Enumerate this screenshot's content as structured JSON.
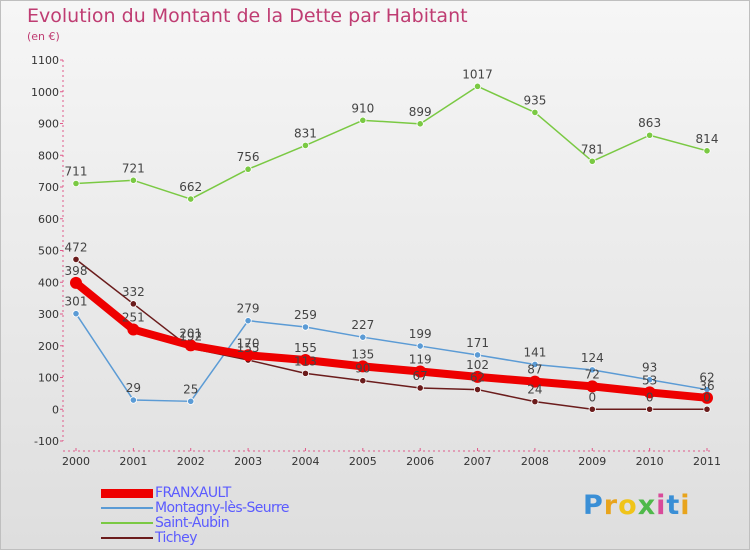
{
  "chart_data": {
    "type": "line",
    "title": "Evolution du Montant de la Dette par Habitant",
    "unit": "(en €)",
    "x": [
      "2000",
      "2001",
      "2002",
      "2003",
      "2004",
      "2005",
      "2006",
      "2007",
      "2008",
      "2009",
      "2010",
      "2011"
    ],
    "ylim": [
      -100,
      1100
    ],
    "yticks": [
      -100,
      0,
      100,
      200,
      300,
      400,
      500,
      600,
      700,
      800,
      900,
      1000,
      1100
    ],
    "grid": false,
    "legend_position": "bottom-left",
    "series": [
      {
        "name": "FRANXAULT",
        "color": "#ee0000",
        "values": [
          398,
          251,
          201,
          170,
          155,
          135,
          119,
          102,
          87,
          72,
          53,
          36
        ]
      },
      {
        "name": "Montagny-lès-Seurre",
        "color": "#5b9bd5",
        "values": [
          301,
          29,
          25,
          279,
          259,
          227,
          199,
          171,
          141,
          124,
          93,
          62
        ]
      },
      {
        "name": "Saint-Aubin",
        "color": "#7ac943",
        "values": [
          711,
          721,
          662,
          756,
          831,
          910,
          899,
          1017,
          935,
          781,
          863,
          814
        ]
      },
      {
        "name": "Tichey",
        "color": "#6b1c1c",
        "values": [
          472,
          332,
          192,
          155,
          113,
          90,
          67,
          62,
          24,
          0,
          0,
          0
        ]
      }
    ],
    "point_labels": [
      [
        "398",
        "251",
        "201",
        "170",
        "155",
        "135",
        "119",
        "102",
        "87",
        "72",
        "53",
        "36"
      ],
      [
        "301",
        "29",
        "25",
        "279",
        "259",
        "227",
        "199",
        "171",
        "141",
        "124",
        "93",
        "62"
      ],
      [
        "711",
        "721",
        "662",
        "756",
        "831",
        "910",
        "899",
        "1017",
        "935",
        "781",
        "863",
        "814"
      ],
      [
        "472",
        "332",
        "192",
        "155",
        "113",
        "90",
        "67",
        "62",
        "24",
        "0",
        "0",
        "0"
      ]
    ]
  },
  "logo": {
    "letters": [
      "P",
      "r",
      "o",
      "x",
      "i",
      "t",
      "i"
    ]
  }
}
